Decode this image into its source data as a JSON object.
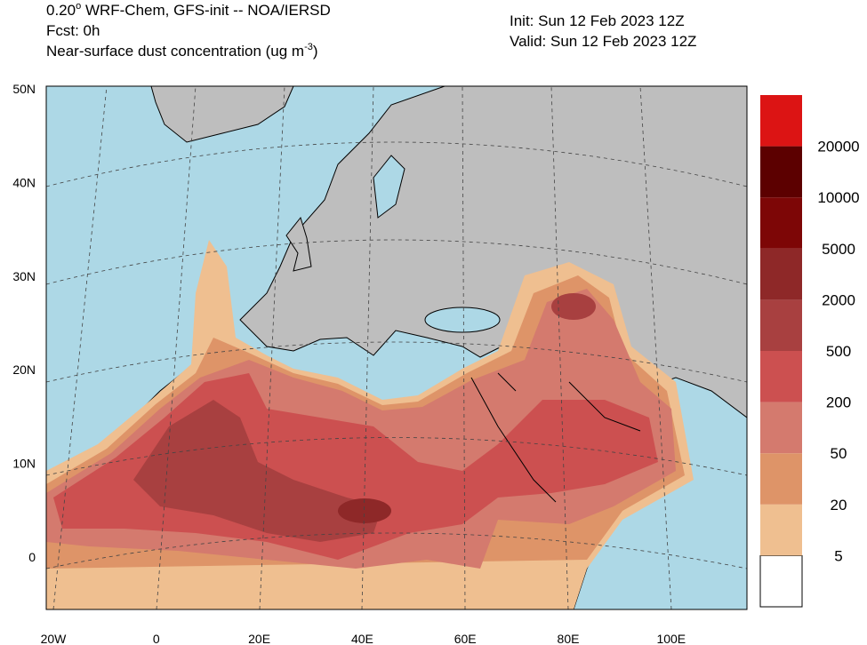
{
  "header": {
    "model": [
      "0.20",
      "o",
      " WRF-Chem, GFS-init -- NOA/IERSD"
    ],
    "forecast": "Fcst: 0h",
    "field": [
      "Near-surface dust concentration (ug m",
      "-3",
      ")"
    ],
    "init": "Init: Sun 12 Feb 2023  12Z",
    "valid": "Valid: Sun 12 Feb 2023  12Z"
  },
  "map": {
    "lat_labels": [
      "50N",
      "40N",
      "30N",
      "20N",
      "10N",
      "0"
    ],
    "lon_labels": [
      "20W",
      "0",
      "20E",
      "40E",
      "60E",
      "80E",
      "100E"
    ]
  },
  "colorbar": {
    "levels": [
      5,
      20,
      50,
      200,
      500,
      2000,
      5000,
      10000,
      20000
    ],
    "colors": [
      "#ffffff",
      "#efbf90",
      "#de9468",
      "#d47a6e",
      "#cc5050",
      "#a84040",
      "#8e2828",
      "#7d0606",
      "#5c0000",
      "#dc1414"
    ]
  }
}
